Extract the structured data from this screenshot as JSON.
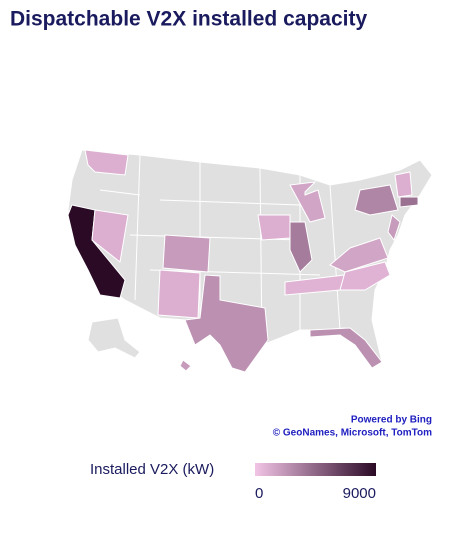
{
  "chart_data": {
    "type": "choropleth",
    "title": "Dispatchable V2X installed capacity",
    "values": [
      9000,
      1000,
      1000,
      2000,
      1000,
      2500,
      1000,
      3500,
      1500,
      800,
      800,
      1500,
      3000,
      2000,
      4000,
      1000,
      2500,
      2000
    ],
    "colors": [
      "#f2c4e6",
      "#2b0a26"
    ],
    "no_data_color": "#e0e0e0",
    "legend_title": "Installed V2X (kW)",
    "legend_range": [
      0,
      9000
    ],
    "legend_ticks": [
      0,
      9000
    ],
    "attribution": [
      "Powered by Bing",
      "© GeoNames, Microsoft, TomTom"
    ]
  }
}
